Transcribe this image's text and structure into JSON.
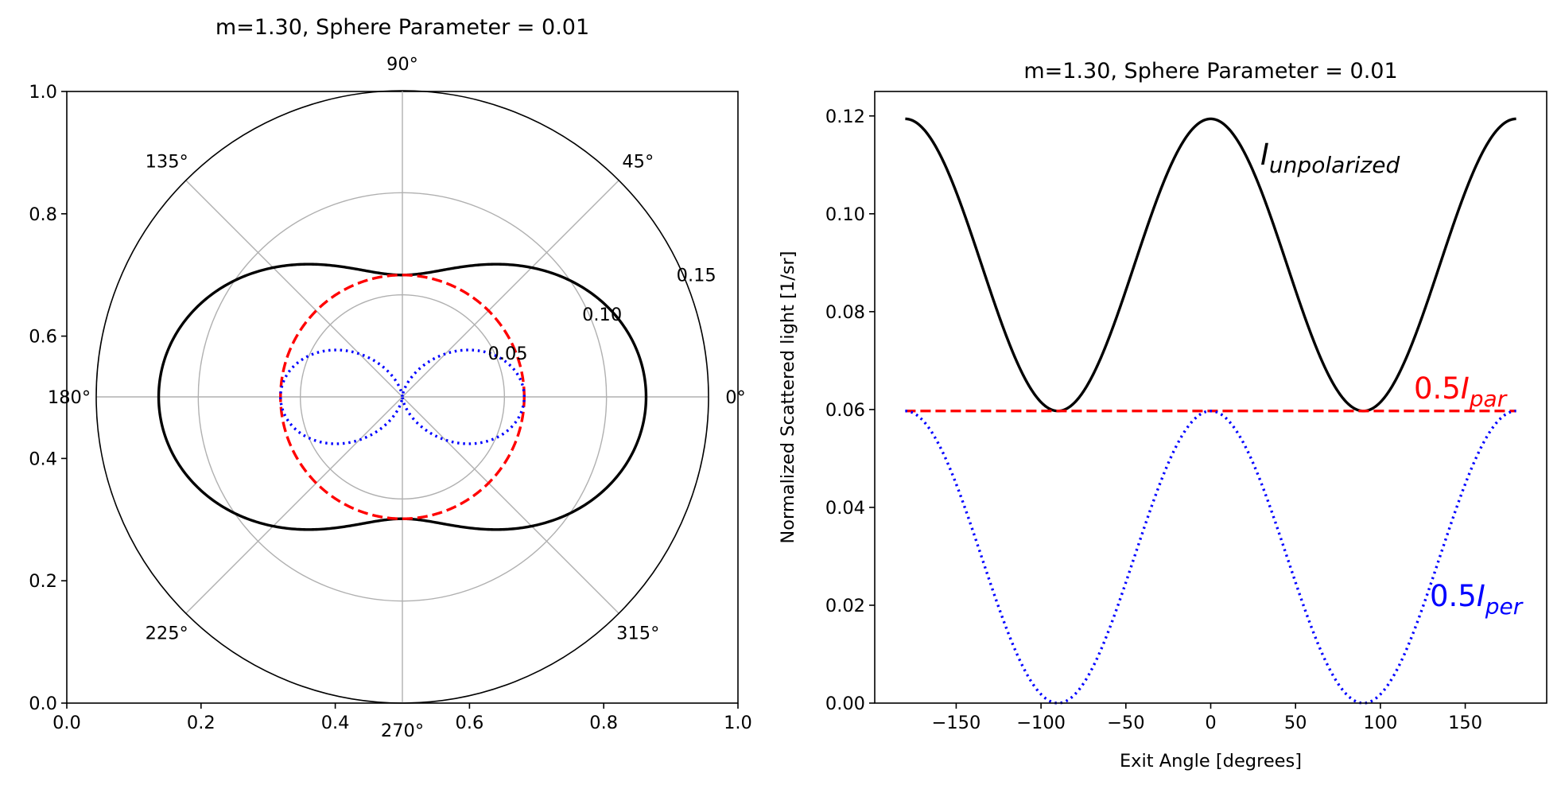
{
  "chart_data": [
    {
      "type": "polar-line",
      "title": "m=1.30, Sphere Parameter = 0.01",
      "angle_unit": "degrees",
      "angle_ticks": [
        "0°",
        "45°",
        "90°",
        "135°",
        "180°",
        "225°",
        "270°",
        "315°"
      ],
      "radial_ticks": [
        "0.05",
        "0.10",
        "0.15"
      ],
      "rlim": [
        0,
        0.15
      ],
      "cartesian_frame": {
        "x_ticks": [
          "0.0",
          "0.2",
          "0.4",
          "0.6",
          "0.8",
          "1.0"
        ],
        "y_ticks": [
          "0.0",
          "0.2",
          "0.4",
          "0.6",
          "0.8",
          "1.0"
        ]
      },
      "series": [
        {
          "key": "unpolarized",
          "color": "#000000",
          "style": "solid",
          "model": "0.0597*(1+cos^2(theta))",
          "samples": {
            "theta_deg": [
              0,
              45,
              90,
              135,
              180
            ],
            "r": [
              0.1194,
              0.0896,
              0.0597,
              0.0896,
              0.1194
            ]
          }
        },
        {
          "key": "par",
          "color": "#ff0000",
          "style": "dashed",
          "model": "0.0597",
          "samples": {
            "theta_deg": [
              0,
              90,
              180,
              270
            ],
            "r": [
              0.0597,
              0.0597,
              0.0597,
              0.0597
            ]
          }
        },
        {
          "key": "per",
          "color": "#0000ff",
          "style": "dotted",
          "model": "0.0597*cos^2(theta)",
          "samples": {
            "theta_deg": [
              0,
              45,
              90,
              135,
              180
            ],
            "r": [
              0.0597,
              0.0299,
              0,
              0.0299,
              0.0597
            ]
          }
        }
      ],
      "grid": true
    },
    {
      "type": "line",
      "title": "m=1.30, Sphere Parameter = 0.01",
      "xlabel": "Exit Angle [degrees]",
      "ylabel": "Normalized Scattered light [1/sr]",
      "xlim": [
        -198,
        198
      ],
      "ylim": [
        0,
        0.125
      ],
      "x_ticks": [
        "−150",
        "−100",
        "−50",
        "0",
        "50",
        "100",
        "150"
      ],
      "y_ticks": [
        "0.00",
        "0.02",
        "0.04",
        "0.06",
        "0.08",
        "0.10",
        "0.12"
      ],
      "series": [
        {
          "key": "unpolarized",
          "color": "#000000",
          "style": "solid",
          "model": "0.0597*(1+cos^2(x))",
          "samples": {
            "x": [
              -180,
              -90,
              0,
              90,
              180
            ],
            "y": [
              0.1194,
              0.0597,
              0.1194,
              0.0597,
              0.1194
            ]
          }
        },
        {
          "key": "par",
          "color": "#ff0000",
          "style": "dashed",
          "model": "0.0597",
          "samples": {
            "x": [
              -180,
              0,
              180
            ],
            "y": [
              0.0597,
              0.0597,
              0.0597
            ]
          }
        },
        {
          "key": "per",
          "color": "#0000ff",
          "style": "dotted",
          "model": "0.0597*cos^2(x)",
          "samples": {
            "x": [
              -180,
              -90,
              0,
              90,
              180
            ],
            "y": [
              0.0597,
              0,
              0.0597,
              0,
              0.0597
            ]
          }
        }
      ],
      "annotations": [
        {
          "key": "unpolarized",
          "main": "I",
          "sub": "unpolarized",
          "color": "#000000"
        },
        {
          "key": "par",
          "main": "0.5I",
          "sub": "par",
          "color": "#ff0000"
        },
        {
          "key": "per",
          "main": "0.5I",
          "sub": "per",
          "color": "#0000ff"
        }
      ],
      "grid": false
    }
  ]
}
